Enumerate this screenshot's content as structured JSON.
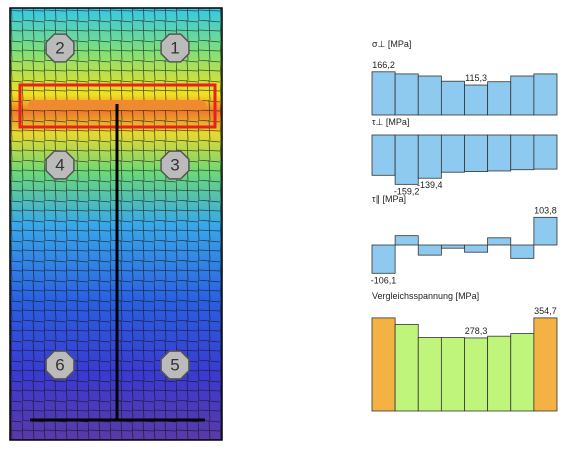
{
  "image": {
    "nodes": [
      "1",
      "2",
      "3",
      "4",
      "5",
      "6"
    ]
  },
  "chart_data": [
    {
      "type": "bar",
      "title": "σ⊥ [MPa]",
      "values": [
        166.2,
        158,
        150,
        130,
        115.3,
        128,
        150,
        158
      ],
      "value_labels": [
        "166,2",
        null,
        null,
        null,
        "115,3",
        null,
        null,
        null
      ],
      "color": "#8ec9f0",
      "ylim": [
        0,
        200
      ]
    },
    {
      "type": "bar",
      "title": "τ⊥ [MPa]",
      "values": [
        -130,
        -159.2,
        -139.4,
        -120,
        -118,
        -116,
        -112,
        -110
      ],
      "value_labels": [
        null,
        "-159,2",
        "-139,4",
        null,
        null,
        null,
        null,
        null
      ],
      "color": "#8ec9f0",
      "ylim": [
        -200,
        0
      ]
    },
    {
      "type": "bar",
      "title": "τ∥ [MPa]",
      "values": [
        -106.1,
        35,
        -38,
        -12,
        -27,
        27,
        -50,
        103.8
      ],
      "value_labels": [
        "-106,1",
        null,
        null,
        null,
        null,
        null,
        null,
        "103,8"
      ],
      "color": "#8ec9f0",
      "ylim": [
        -150,
        150
      ]
    },
    {
      "type": "bar",
      "title": "Vergleichsspannung [MPa]",
      "values": [
        354.7,
        330,
        280,
        280,
        278.3,
        285,
        295,
        354.7
      ],
      "value_labels": [
        null,
        null,
        null,
        null,
        "278,3",
        null,
        null,
        "354,7"
      ],
      "colors": [
        "#f5b244",
        "#bff57a",
        "#bff57a",
        "#bff57a",
        "#bff57a",
        "#bff57a",
        "#bff57a",
        "#f5b244"
      ],
      "ylim": [
        0,
        400
      ]
    }
  ]
}
